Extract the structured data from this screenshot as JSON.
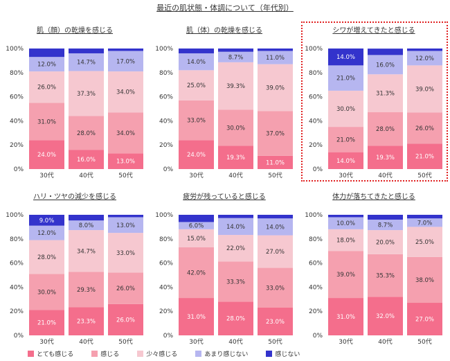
{
  "title": "最近の肌状態・体調について（年代別）",
  "legend": [
    "とても感じる",
    "感じる",
    "少々感じる",
    "あまり感じない",
    "感じない"
  ],
  "colors": [
    "#f46e8c",
    "#f5a0af",
    "#f6c8d0",
    "#b6b6f0",
    "#3333cc"
  ],
  "label_colors": [
    "#ffffff",
    "#333333",
    "#333333",
    "#333333",
    "#ffffff"
  ],
  "y_ticks": [
    "0%",
    "20%",
    "40%",
    "60%",
    "80%",
    "100%"
  ],
  "chart_data": [
    {
      "type": "bar",
      "stacked": true,
      "title": "肌（顔）の乾燥を感じる",
      "categories": [
        "30代",
        "40代",
        "50代"
      ],
      "ylim": [
        0,
        100
      ],
      "series": [
        {
          "name": "とても感じる",
          "values": [
            24.0,
            16.0,
            13.0
          ]
        },
        {
          "name": "感じる",
          "values": [
            31.0,
            28.0,
            34.0
          ]
        },
        {
          "name": "少々感じる",
          "values": [
            26.0,
            37.3,
            34.0
          ]
        },
        {
          "name": "あまり感じない",
          "values": [
            12.0,
            14.7,
            17.0
          ]
        },
        {
          "name": "感じない",
          "values": [
            7.0,
            4.0,
            2.0
          ]
        }
      ]
    },
    {
      "type": "bar",
      "stacked": true,
      "title": "肌（体）の乾燥を感じる",
      "categories": [
        "30代",
        "40代",
        "50代"
      ],
      "ylim": [
        0,
        100
      ],
      "series": [
        {
          "name": "とても感じる",
          "values": [
            24.0,
            19.3,
            11.0
          ]
        },
        {
          "name": "感じる",
          "values": [
            33.0,
            30.0,
            37.0
          ]
        },
        {
          "name": "少々感じる",
          "values": [
            25.0,
            39.3,
            39.0
          ]
        },
        {
          "name": "あまり感じない",
          "values": [
            14.0,
            8.7,
            11.0
          ]
        },
        {
          "name": "感じない",
          "values": [
            4.0,
            2.7,
            2.0
          ]
        }
      ]
    },
    {
      "type": "bar",
      "stacked": true,
      "title": "シワが増えてきたと感じる",
      "categories": [
        "30代",
        "40代",
        "50代"
      ],
      "ylim": [
        0,
        100
      ],
      "series": [
        {
          "name": "とても感じる",
          "values": [
            14.0,
            19.3,
            21.0
          ]
        },
        {
          "name": "感じる",
          "values": [
            21.0,
            28.0,
            26.0
          ]
        },
        {
          "name": "少々感じる",
          "values": [
            30.0,
            31.3,
            39.0
          ]
        },
        {
          "name": "あまり感じない",
          "values": [
            21.0,
            16.0,
            12.0
          ]
        },
        {
          "name": "感じない",
          "values": [
            14.0,
            5.3,
            2.0
          ]
        }
      ]
    },
    {
      "type": "bar",
      "stacked": true,
      "title": "ハリ・ツヤの減少を感じる",
      "categories": [
        "30代",
        "40代",
        "50代"
      ],
      "ylim": [
        0,
        100
      ],
      "series": [
        {
          "name": "とても感じる",
          "values": [
            21.0,
            23.3,
            26.0
          ]
        },
        {
          "name": "感じる",
          "values": [
            30.0,
            29.3,
            26.0
          ]
        },
        {
          "name": "少々感じる",
          "values": [
            28.0,
            34.7,
            33.0
          ]
        },
        {
          "name": "あまり感じない",
          "values": [
            12.0,
            8.0,
            13.0
          ]
        },
        {
          "name": "感じない",
          "values": [
            9.0,
            4.7,
            2.0
          ]
        }
      ]
    },
    {
      "type": "bar",
      "stacked": true,
      "title": "疲労が残っていると感じる",
      "categories": [
        "30代",
        "40代",
        "50代"
      ],
      "ylim": [
        0,
        100
      ],
      "series": [
        {
          "name": "とても感じる",
          "values": [
            31.0,
            28.0,
            23.0
          ]
        },
        {
          "name": "感じる",
          "values": [
            42.0,
            33.3,
            33.0
          ]
        },
        {
          "name": "少々感じる",
          "values": [
            15.0,
            22.0,
            27.0
          ]
        },
        {
          "name": "あまり感じない",
          "values": [
            6.0,
            14.0,
            14.0
          ]
        },
        {
          "name": "感じない",
          "values": [
            6.0,
            2.7,
            3.0
          ]
        }
      ]
    },
    {
      "type": "bar",
      "stacked": true,
      "title": "体力が落ちてきたと感じる",
      "categories": [
        "30代",
        "40代",
        "50代"
      ],
      "ylim": [
        0,
        100
      ],
      "series": [
        {
          "name": "とても感じる",
          "values": [
            31.0,
            32.0,
            27.0
          ]
        },
        {
          "name": "感じる",
          "values": [
            39.0,
            35.3,
            38.0
          ]
        },
        {
          "name": "少々感じる",
          "values": [
            18.0,
            20.0,
            25.0
          ]
        },
        {
          "name": "あまり感じない",
          "values": [
            10.0,
            8.7,
            7.0
          ]
        },
        {
          "name": "感じない",
          "values": [
            2.0,
            4.0,
            3.0
          ]
        }
      ]
    }
  ]
}
